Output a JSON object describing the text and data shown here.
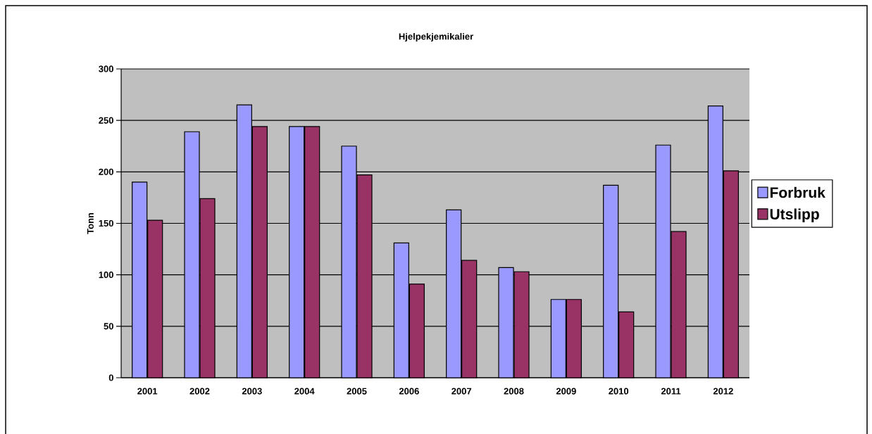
{
  "chart_data": {
    "type": "bar",
    "title": "Hjelpekjemikalier",
    "ylabel": "Tonn",
    "categories": [
      "2001",
      "2002",
      "2003",
      "2004",
      "2005",
      "2006",
      "2007",
      "2008",
      "2009",
      "2010",
      "2011",
      "2012"
    ],
    "series": [
      {
        "name": "Forbruk",
        "color": "#9999ff",
        "values": [
          190,
          239,
          265,
          244,
          225,
          131,
          163,
          107,
          76,
          187,
          226,
          264
        ]
      },
      {
        "name": "Utslipp",
        "color": "#993366",
        "values": [
          153,
          174,
          244,
          244,
          197,
          91,
          114,
          103,
          76,
          64,
          142,
          201
        ]
      }
    ],
    "ylim": [
      0,
      300
    ],
    "yticks": [
      0,
      50,
      100,
      150,
      200,
      250,
      300
    ],
    "grid": "y",
    "legend": "right"
  }
}
